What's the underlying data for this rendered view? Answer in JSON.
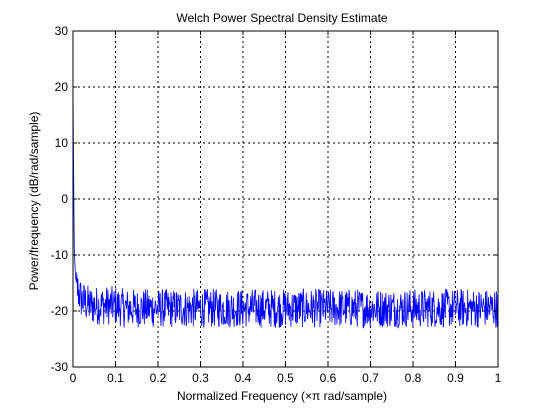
{
  "chart_data": {
    "type": "line",
    "title": "Welch Power Spectral Density Estimate",
    "xlabel": "Normalized Frequency  (×π rad/sample)",
    "ylabel": "Power/frequency  (dB/rad/sample)",
    "xlim": [
      0,
      1
    ],
    "ylim": [
      -30,
      30
    ],
    "xticks": [
      0,
      0.1,
      0.2,
      0.3,
      0.4,
      0.5,
      0.6,
      0.7,
      0.8,
      0.9,
      1
    ],
    "xtick_labels": [
      "0",
      "0.1",
      "0.2",
      "0.3",
      "0.4",
      "0.5",
      "0.6",
      "0.7",
      "0.8",
      "0.9",
      "1"
    ],
    "yticks": [
      30,
      20,
      10,
      0,
      -10,
      -20,
      -30
    ],
    "ytick_labels": [
      "30",
      "20",
      "10",
      "0",
      "-10",
      "-20",
      "-30"
    ],
    "grid": true,
    "grid_style": "dotted",
    "series": [
      {
        "color": "#0000ff",
        "x": [
          0,
          0.003,
          0.006,
          0.01,
          0.015,
          0.02,
          0.03,
          0.04,
          0.05,
          0.06,
          0.07,
          0.08,
          0.09,
          0.1,
          0.12,
          0.14,
          0.16,
          0.18,
          0.2,
          0.22,
          0.24,
          0.26,
          0.28,
          0.3,
          0.32,
          0.34,
          0.36,
          0.38,
          0.4,
          0.42,
          0.44,
          0.46,
          0.48,
          0.5,
          0.52,
          0.54,
          0.56,
          0.58,
          0.6,
          0.62,
          0.64,
          0.66,
          0.68,
          0.7,
          0.72,
          0.74,
          0.76,
          0.78,
          0.8,
          0.82,
          0.84,
          0.86,
          0.88,
          0.9,
          0.92,
          0.94,
          0.96,
          0.98,
          1.0
        ],
        "y": [
          19,
          -9,
          -14,
          -16,
          -17,
          -18,
          -18.5,
          -19,
          -19,
          -19,
          -19,
          -19,
          -19,
          -19,
          -19.5,
          -19.5,
          -19.5,
          -19.5,
          -19.5,
          -19.5,
          -19.5,
          -19.5,
          -19.5,
          -19.5,
          -19.5,
          -19.5,
          -19.5,
          -19.5,
          -19.5,
          -19.5,
          -19.5,
          -19.5,
          -19.5,
          -19.5,
          -19.5,
          -19.5,
          -19.5,
          -19.5,
          -19.5,
          -19.5,
          -19.5,
          -19.5,
          -19.5,
          -19.5,
          -19.5,
          -19.5,
          -19.5,
          -19.5,
          -19.5,
          -19.5,
          -19.5,
          -19.5,
          -19.5,
          -19.5,
          -19.5,
          -19.5,
          -19.5,
          -19.5,
          -19.5
        ],
        "noise_amplitude_db": 3.5
      }
    ]
  }
}
